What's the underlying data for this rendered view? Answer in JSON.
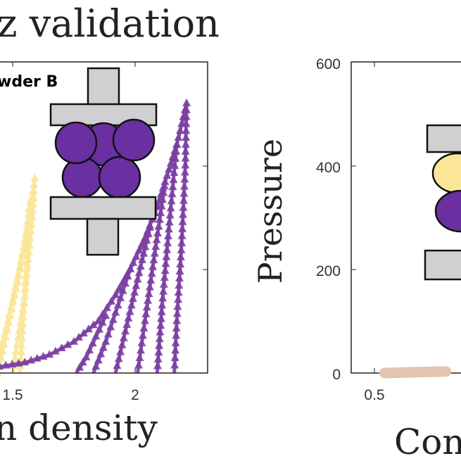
{
  "title": "z validation",
  "chart_data": [
    {
      "type": "line",
      "annotation": "wder B",
      "xlabel": "n density",
      "ylabel": "",
      "xlim": [
        1.45,
        2.32
      ],
      "ylim": [
        0,
        600
      ],
      "xticks": [
        "1.5",
        "2"
      ],
      "xtick_values": [
        1.5,
        2
      ],
      "ytick_values": [
        200,
        400
      ],
      "grid": false,
      "marker": "triangle",
      "colors": {
        "light": "#f9e79a",
        "dark": "#7b3fa3"
      },
      "series": [
        {
          "color": "light",
          "x": [
            1.42,
            1.46,
            1.5,
            1.54,
            1.57,
            1.59,
            1.58,
            1.55,
            1.5
          ],
          "y": [
            0,
            60,
            140,
            230,
            310,
            375,
            300,
            150,
            0
          ]
        },
        {
          "color": "light",
          "x": [
            1.44,
            1.49,
            1.53,
            1.56,
            1.57,
            1.55,
            1.53
          ],
          "y": [
            0,
            110,
            200,
            280,
            330,
            160,
            0
          ]
        },
        {
          "color": "dark",
          "x": [
            1.42,
            1.55,
            1.65,
            1.75,
            1.85,
            1.92,
            1.98,
            2.04,
            2.09,
            2.13,
            2.17,
            2.21,
            2.205,
            2.19,
            2.17,
            2.16
          ],
          "y": [
            10,
            20,
            35,
            60,
            100,
            150,
            200,
            260,
            320,
            380,
            440,
            520,
            400,
            250,
            100,
            0
          ]
        },
        {
          "color": "dark",
          "x": [
            1.88,
            1.84,
            1.8,
            1.76
          ],
          "y": [
            110,
            70,
            30,
            0
          ]
        },
        {
          "color": "dark",
          "x": [
            1.98,
            1.93,
            1.88,
            1.83
          ],
          "y": [
            200,
            130,
            60,
            0
          ]
        },
        {
          "color": "dark",
          "x": [
            2.06,
            2.01,
            1.96,
            1.92
          ],
          "y": [
            280,
            180,
            80,
            0
          ]
        },
        {
          "color": "dark",
          "x": [
            2.12,
            2.08,
            2.04,
            2.01
          ],
          "y": [
            360,
            230,
            100,
            0
          ]
        },
        {
          "color": "dark",
          "x": [
            2.17,
            2.14,
            2.11,
            2.09
          ],
          "y": [
            440,
            290,
            130,
            0
          ]
        }
      ]
    },
    {
      "type": "line",
      "xlabel": "Con",
      "ylabel": "Pressure",
      "ylim": [
        0,
        600
      ],
      "yticks": [
        "0",
        "200",
        "400",
        "600"
      ],
      "ytick_values": [
        0,
        200,
        400,
        600
      ],
      "xticks": [
        "0.5"
      ],
      "xtick_values": [
        0.5
      ],
      "grid": false,
      "series": [
        {
          "color": "#e2c4b0",
          "x": [
            0.55,
            0.85
          ],
          "y": [
            0,
            3
          ]
        }
      ]
    }
  ]
}
